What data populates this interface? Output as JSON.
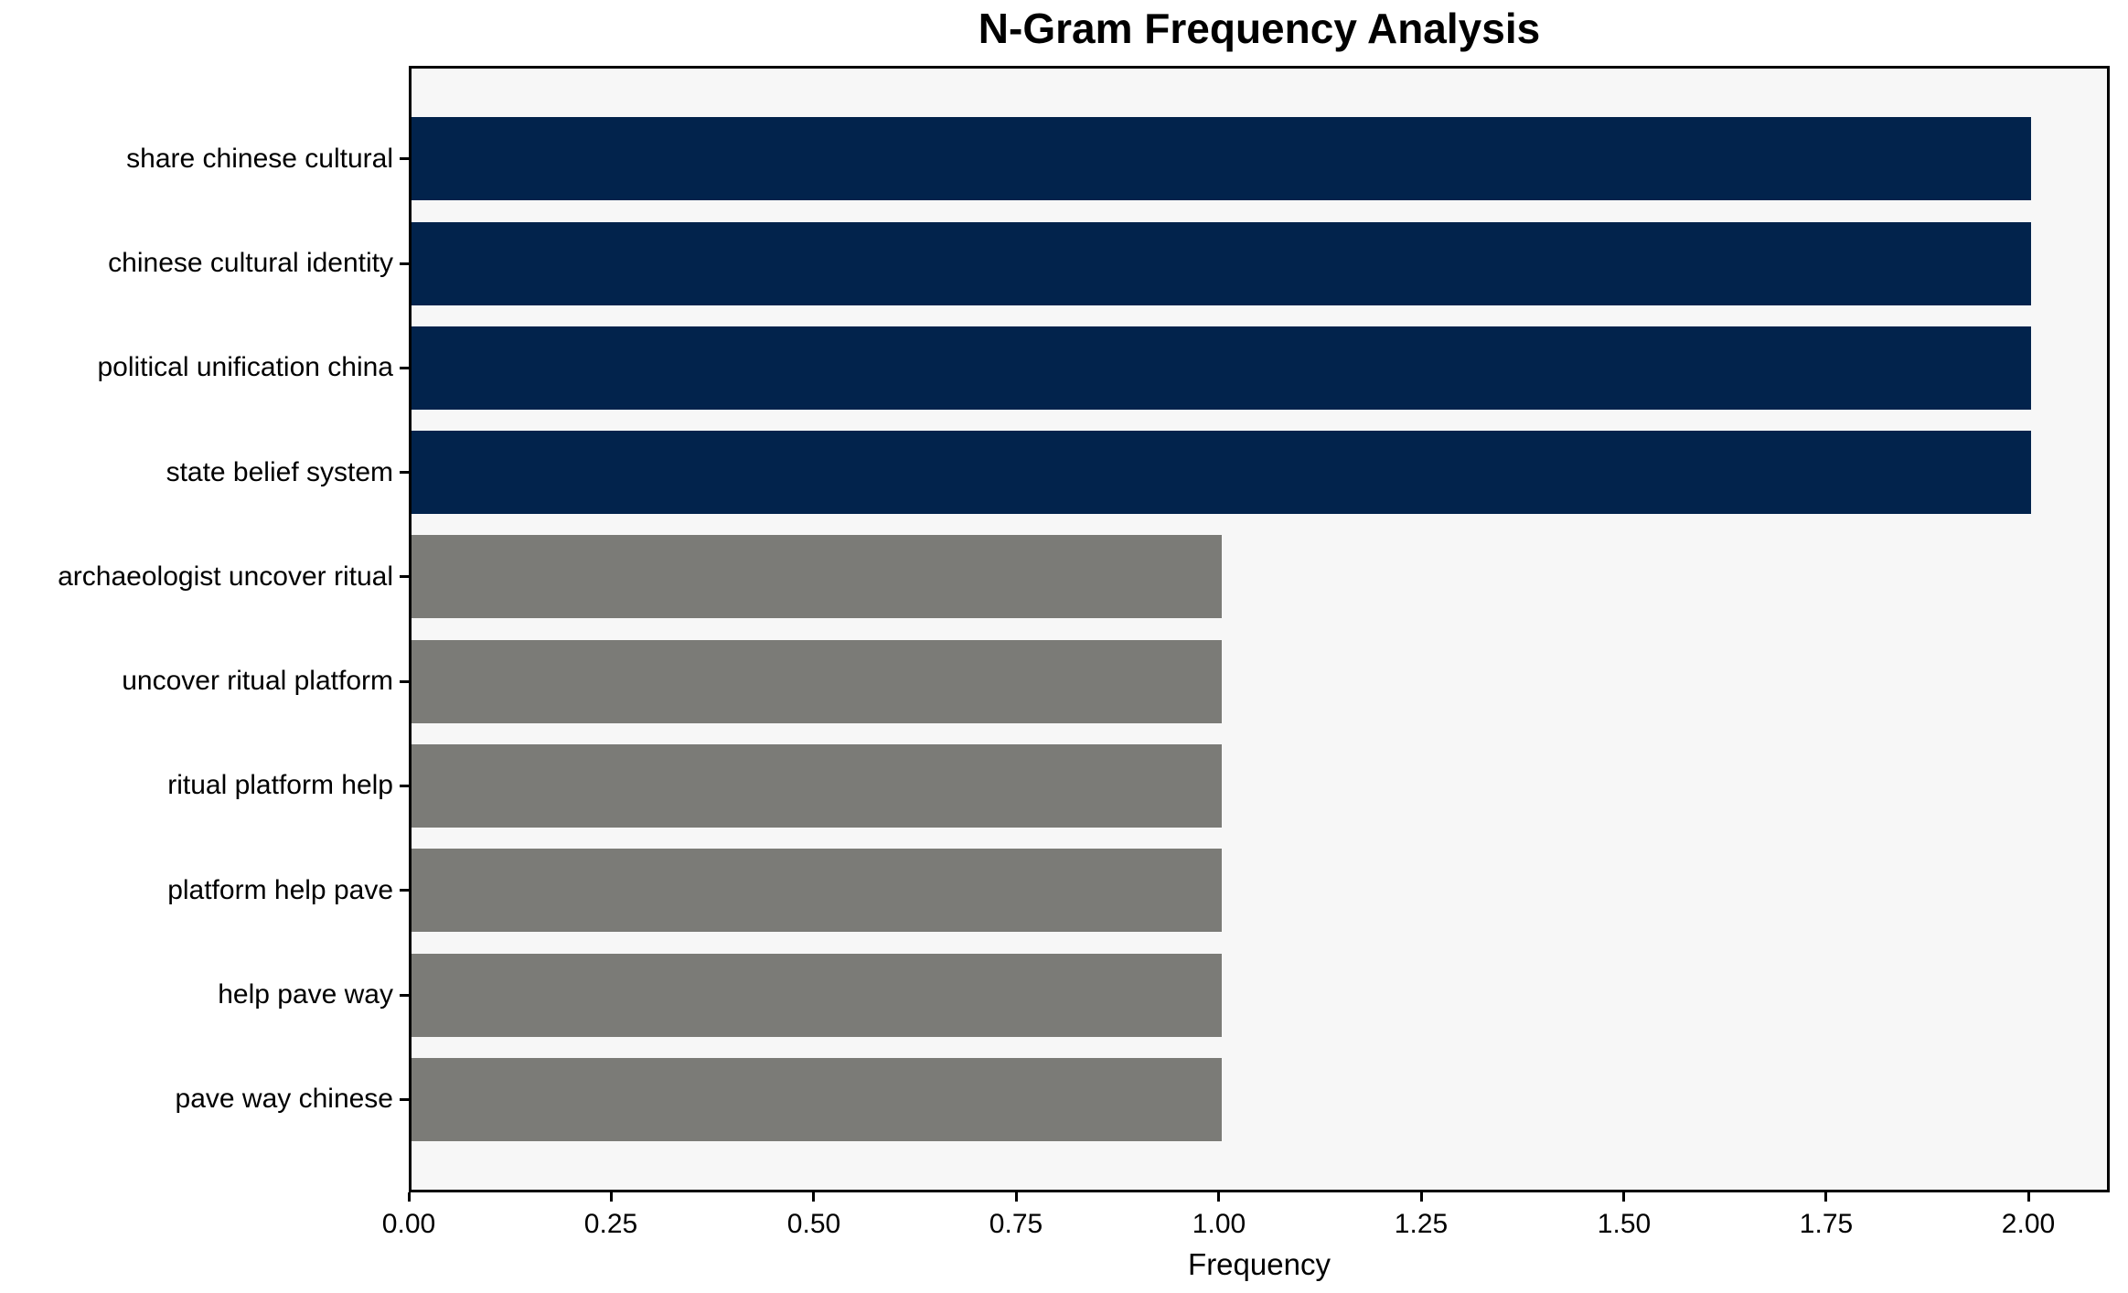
{
  "chart_data": {
    "type": "bar",
    "orientation": "horizontal",
    "title": "N-Gram Frequency Analysis",
    "xlabel": "Frequency",
    "ylabel": "",
    "categories": [
      "share chinese cultural",
      "chinese cultural identity",
      "political unification china",
      "state belief system",
      "archaeologist uncover ritual",
      "uncover ritual platform",
      "ritual platform help",
      "platform help pave",
      "help pave way",
      "pave way chinese"
    ],
    "values": [
      2,
      2,
      2,
      2,
      1,
      1,
      1,
      1,
      1,
      1
    ],
    "bar_colors": [
      "#02234c",
      "#02234c",
      "#02234c",
      "#02234c",
      "#7b7b77",
      "#7b7b77",
      "#7b7b77",
      "#7b7b77",
      "#7b7b77",
      "#7b7b77"
    ],
    "x_ticks": [
      0,
      0.25,
      0.5,
      0.75,
      1,
      1.25,
      1.5,
      1.75,
      2
    ],
    "x_tick_labels": [
      "0.00",
      "0.25",
      "0.50",
      "0.75",
      "1.00",
      "1.25",
      "1.50",
      "1.75",
      "2.00"
    ],
    "xlim": [
      0,
      2.1
    ],
    "grid": false,
    "legend_position": "none",
    "colors": {
      "high_frequency_bar": "#02234c",
      "low_frequency_bar": "#7b7b77",
      "plot_background": "#f7f7f7",
      "figure_background": "#ffffff",
      "axis": "#000000"
    }
  }
}
